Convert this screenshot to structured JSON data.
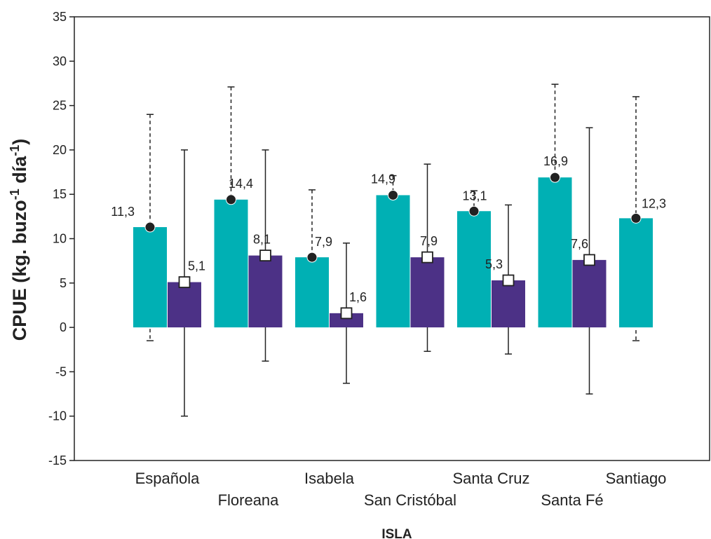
{
  "chart_data": {
    "type": "bar",
    "categories": [
      "Española",
      "Floreana",
      "Isabela",
      "San Cristóbal",
      "Santa Cruz",
      "Santa Fé",
      "Santiago"
    ],
    "series": [
      {
        "color": "#00b0b4",
        "marker": "filled-circle",
        "error_style": "dashed",
        "values": [
          11.3,
          14.4,
          7.9,
          14.9,
          13.1,
          16.9,
          12.3
        ],
        "labels": [
          "11,3",
          "14,4",
          "7,9",
          "14,9",
          "13,1",
          "16,9",
          "12,3"
        ],
        "err_low": [
          -1.5,
          13.2,
          6.5,
          13.8,
          11.0,
          6.3,
          -1.5
        ],
        "err_high": [
          24.0,
          27.1,
          15.5,
          17.1,
          15.4,
          27.4,
          26.0
        ]
      },
      {
        "color": "#4c3186",
        "marker": "open-square",
        "error_style": "solid",
        "values": [
          5.1,
          8.1,
          1.6,
          7.9,
          5.3,
          7.6,
          null
        ],
        "labels": [
          "5,1",
          "8,1",
          "1,6",
          "7,9",
          "5,3",
          "7,6",
          ""
        ],
        "err_low": [
          -10.0,
          -3.8,
          -6.3,
          -2.7,
          -3.0,
          -7.5,
          null
        ],
        "err_high": [
          20.0,
          20.0,
          9.5,
          18.4,
          13.8,
          22.5,
          null
        ]
      }
    ],
    "ylabel": "CPUE (kg. buzo-1 día-1)",
    "ylabel_parts": {
      "main": "CPUE (kg. buzo",
      "sup1": "-1",
      "mid": " día",
      "sup2": "-1",
      "end": ")"
    },
    "xlabel": "ISLA",
    "ylim": [
      -15,
      35
    ],
    "yticks": [
      -15,
      -10,
      -5,
      0,
      5,
      10,
      15,
      20,
      25,
      30,
      35
    ],
    "grid": false,
    "legend": "none"
  }
}
